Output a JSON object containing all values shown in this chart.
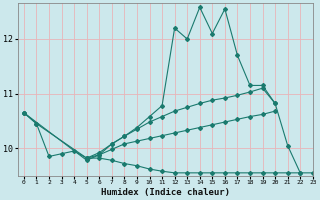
{
  "xlabel": "Humidex (Indice chaleur)",
  "xlim": [
    -0.5,
    23
  ],
  "ylim": [
    9.5,
    12.65
  ],
  "yticks": [
    10,
    11,
    12
  ],
  "xticks": [
    0,
    1,
    2,
    3,
    4,
    5,
    6,
    7,
    8,
    9,
    10,
    11,
    12,
    13,
    14,
    15,
    16,
    17,
    18,
    19,
    20,
    21,
    22,
    23
  ],
  "bg_color": "#cce8ec",
  "grid_color_v": "#e8b4b8",
  "grid_color_h": "#e8b4b8",
  "line_color": "#1a7a6e",
  "lines": [
    {
      "x": [
        0,
        1,
        2,
        3,
        4,
        5,
        6,
        7,
        8,
        9,
        10,
        11,
        12,
        13,
        14,
        15,
        16,
        17,
        18,
        19,
        20,
        21,
        22
      ],
      "y": [
        10.65,
        10.45,
        9.85,
        9.9,
        9.95,
        9.82,
        9.88,
        10.08,
        10.22,
        10.38,
        10.58,
        10.78,
        12.2,
        12.0,
        12.58,
        12.1,
        12.55,
        11.7,
        11.15,
        11.15,
        10.82,
        10.05,
        9.55
      ]
    },
    {
      "x": [
        0,
        1,
        5,
        6,
        7,
        8,
        9,
        10,
        11,
        12,
        13,
        14,
        15,
        16,
        17,
        18,
        19,
        20
      ],
      "y": [
        10.65,
        10.45,
        9.82,
        9.92,
        10.08,
        10.22,
        10.35,
        10.48,
        10.58,
        10.68,
        10.75,
        10.82,
        10.88,
        10.92,
        10.97,
        11.03,
        11.1,
        10.82
      ]
    },
    {
      "x": [
        0,
        5,
        6,
        7,
        8,
        9,
        10,
        11,
        12,
        13,
        14,
        15,
        16,
        17,
        18,
        19,
        20
      ],
      "y": [
        10.65,
        9.78,
        9.88,
        9.98,
        10.08,
        10.13,
        10.18,
        10.23,
        10.28,
        10.33,
        10.38,
        10.43,
        10.48,
        10.53,
        10.58,
        10.62,
        10.68
      ]
    },
    {
      "x": [
        5,
        6,
        7,
        8,
        9,
        10,
        11,
        12,
        13,
        14,
        15,
        16,
        17,
        18,
        19,
        20,
        21,
        22,
        23
      ],
      "y": [
        9.82,
        9.82,
        9.78,
        9.72,
        9.68,
        9.62,
        9.58,
        9.55,
        9.55,
        9.55,
        9.55,
        9.55,
        9.55,
        9.55,
        9.55,
        9.55,
        9.55,
        9.55,
        9.55
      ]
    }
  ]
}
